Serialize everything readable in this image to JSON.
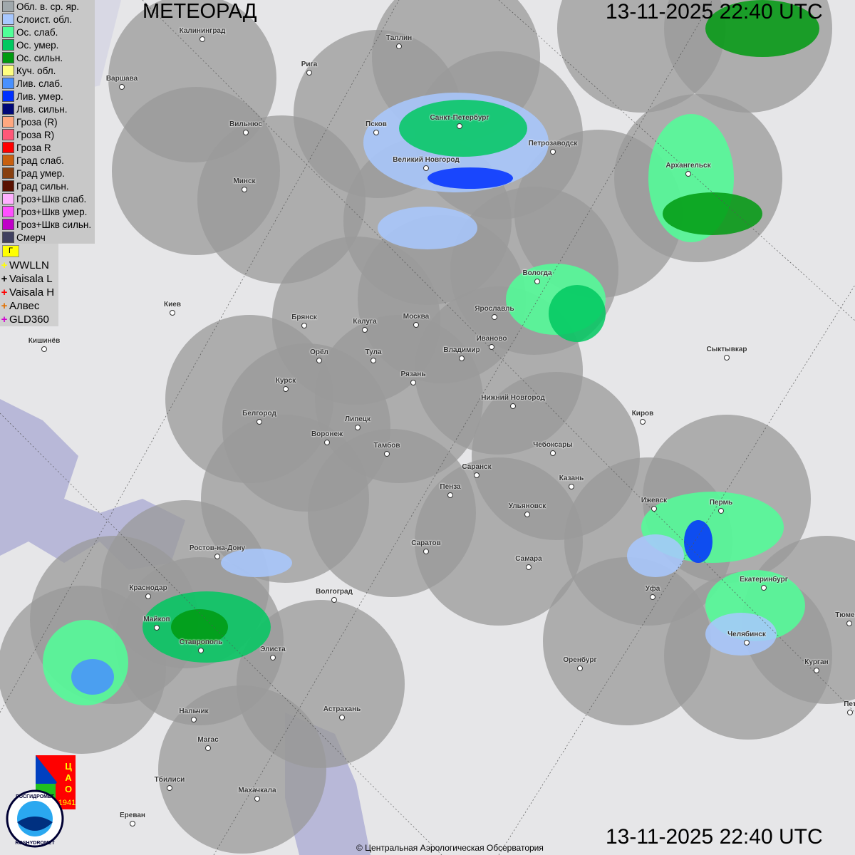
{
  "header": {
    "title": "МЕТЕОРАД",
    "timestamp_top": "13-11-2025  22:40 UTC",
    "timestamp_bottom": "13-11-2025  22:40 UTC"
  },
  "legend": [
    {
      "label": "Обл. в. ср. яр.",
      "color": "#a0a8ac"
    },
    {
      "label": "Слоист. обл.",
      "color": "#a8c8ff"
    },
    {
      "label": "Ос. слаб.",
      "color": "#50ff98"
    },
    {
      "label": "Ос. умер.",
      "color": "#00c860"
    },
    {
      "label": "Ос. сильн.",
      "color": "#009a10"
    },
    {
      "label": "Куч. обл.",
      "color": "#ffff80"
    },
    {
      "label": "Лив. слаб.",
      "color": "#4890ff"
    },
    {
      "label": "Лив. умер.",
      "color": "#0030ff"
    },
    {
      "label": "Лив. сильн.",
      "color": "#000878"
    },
    {
      "label": "Гроза (R)",
      "color": "#ffa880"
    },
    {
      "label": "Гроза R)",
      "color": "#ff5878"
    },
    {
      "label": "Гроза R",
      "color": "#ff0000"
    },
    {
      "label": "Град слаб.",
      "color": "#c86010"
    },
    {
      "label": "Град умер.",
      "color": "#884010"
    },
    {
      "label": "Град сильн.",
      "color": "#581000"
    },
    {
      "label": "Гроз+Шкв слаб.",
      "color": "#ffb0ff"
    },
    {
      "label": "Гроз+Шкв умер.",
      "color": "#ff50ff"
    },
    {
      "label": "Гроз+Шкв сильн.",
      "color": "#c000c8"
    },
    {
      "label": "Смерч",
      "color": "#404060"
    }
  ],
  "lightning_flag": "Г",
  "lightning": [
    {
      "label": "WWLLN",
      "color": "#ffff00"
    },
    {
      "label": "Vaisala L",
      "color": "#000000"
    },
    {
      "label": "Vaisala H",
      "color": "#ff0000"
    },
    {
      "label": "Алвес",
      "color": "#e07000"
    },
    {
      "label": "GLD360",
      "color": "#d000d0"
    }
  ],
  "cities": [
    "Калининград",
    "Таллин",
    "Рига",
    "Варшава",
    "Вильнюс",
    "Псков",
    "Санкт-Петербург",
    "Петрозаводск",
    "Архангельск",
    "Великий Новгород",
    "Минск",
    "Вологда",
    "Ярославль",
    "Москва",
    "Калуга",
    "Брянск",
    "Иваново",
    "Киев",
    "Кишинёв",
    "Орёл",
    "Тула",
    "Владимир",
    "Сыктывкар",
    "Рязань",
    "Курск",
    "Нижний Новгород",
    "Белгород",
    "Киров",
    "Липецк",
    "Воронеж",
    "Тамбов",
    "Чебоксары",
    "Саранск",
    "Казань",
    "Пенза",
    "Ижевск",
    "Пермь",
    "Ульяновск",
    "Саратов",
    "Ростов-на-Дону",
    "Самара",
    "Волгоград",
    "Краснодар",
    "Уфа",
    "Екатеринбург",
    "Тюмень",
    "Майкоп",
    "Челябинск",
    "Ставрополь",
    "Элиста",
    "Оренбург",
    "Курган",
    "Нальчик",
    "Астрахань",
    "Магас",
    "Тбилиси",
    "Махачкала",
    "Ереван",
    "Пет"
  ],
  "logos": {
    "cao": "ЦАО 1941",
    "roshydromet": "РОСГИДРОМЕТ ROSHYDROMET"
  },
  "copyright": "© Центральная Аэрологическая Обсерватория"
}
